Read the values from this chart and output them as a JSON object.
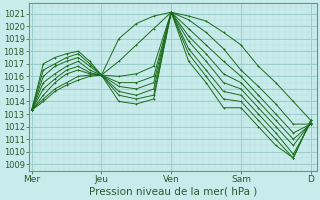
{
  "xlabel": "Pression niveau de la mer( hPa )",
  "bg_color": "#c8ecec",
  "grid_major_color": "#98c8c8",
  "grid_minor_color": "#b8dcdc",
  "line_color": "#1a6b1a",
  "ylim": [
    1008.5,
    1021.8
  ],
  "yticks": [
    1009,
    1010,
    1011,
    1012,
    1013,
    1014,
    1015,
    1016,
    1017,
    1018,
    1019,
    1020,
    1021
  ],
  "xlim": [
    -2,
    196
  ],
  "x_day_labels": [
    "Mer",
    "Jeu",
    "Ven",
    "Sam",
    "D"
  ],
  "x_day_positions": [
    0,
    48,
    96,
    144,
    192
  ],
  "lines": [
    {
      "pts": [
        [
          0,
          1013.3
        ],
        [
          8,
          1014.0
        ],
        [
          16,
          1014.8
        ],
        [
          24,
          1015.3
        ],
        [
          32,
          1015.7
        ],
        [
          40,
          1016.0
        ],
        [
          48,
          1016.1
        ],
        [
          60,
          1019.0
        ],
        [
          72,
          1020.2
        ],
        [
          84,
          1020.8
        ],
        [
          96,
          1021.1
        ],
        [
          108,
          1020.8
        ],
        [
          120,
          1020.4
        ],
        [
          132,
          1019.5
        ],
        [
          144,
          1018.5
        ],
        [
          156,
          1016.8
        ],
        [
          168,
          1015.5
        ],
        [
          180,
          1014.0
        ],
        [
          192,
          1012.5
        ]
      ]
    },
    {
      "pts": [
        [
          0,
          1013.3
        ],
        [
          8,
          1014.2
        ],
        [
          16,
          1015.0
        ],
        [
          24,
          1015.5
        ],
        [
          32,
          1016.0
        ],
        [
          40,
          1016.1
        ],
        [
          48,
          1016.1
        ],
        [
          60,
          1017.2
        ],
        [
          72,
          1018.5
        ],
        [
          84,
          1019.8
        ],
        [
          96,
          1021.1
        ],
        [
          108,
          1020.5
        ],
        [
          120,
          1019.5
        ],
        [
          132,
          1018.2
        ],
        [
          144,
          1016.5
        ],
        [
          156,
          1015.2
        ],
        [
          168,
          1013.8
        ],
        [
          180,
          1012.2
        ],
        [
          192,
          1012.2
        ]
      ]
    },
    {
      "pts": [
        [
          0,
          1013.3
        ],
        [
          8,
          1014.5
        ],
        [
          16,
          1015.5
        ],
        [
          24,
          1016.2
        ],
        [
          32,
          1016.5
        ],
        [
          40,
          1016.2
        ],
        [
          48,
          1016.1
        ],
        [
          60,
          1016.0
        ],
        [
          72,
          1016.2
        ],
        [
          84,
          1016.8
        ],
        [
          96,
          1021.1
        ],
        [
          108,
          1019.8
        ],
        [
          120,
          1018.5
        ],
        [
          132,
          1017.2
        ],
        [
          144,
          1016.0
        ],
        [
          156,
          1014.5
        ],
        [
          168,
          1013.0
        ],
        [
          180,
          1011.5
        ],
        [
          192,
          1012.2
        ]
      ]
    },
    {
      "pts": [
        [
          0,
          1013.3
        ],
        [
          8,
          1015.0
        ],
        [
          16,
          1015.8
        ],
        [
          24,
          1016.5
        ],
        [
          32,
          1016.8
        ],
        [
          40,
          1016.3
        ],
        [
          48,
          1016.1
        ],
        [
          60,
          1015.5
        ],
        [
          72,
          1015.5
        ],
        [
          84,
          1016.0
        ],
        [
          96,
          1021.1
        ],
        [
          108,
          1019.2
        ],
        [
          120,
          1017.8
        ],
        [
          132,
          1016.2
        ],
        [
          144,
          1015.5
        ],
        [
          156,
          1014.0
        ],
        [
          168,
          1012.5
        ],
        [
          180,
          1011.0
        ],
        [
          192,
          1012.2
        ]
      ]
    },
    {
      "pts": [
        [
          0,
          1013.3
        ],
        [
          8,
          1015.5
        ],
        [
          16,
          1016.2
        ],
        [
          24,
          1016.8
        ],
        [
          32,
          1017.2
        ],
        [
          40,
          1016.5
        ],
        [
          48,
          1016.1
        ],
        [
          60,
          1015.2
        ],
        [
          72,
          1015.0
        ],
        [
          84,
          1015.5
        ],
        [
          96,
          1021.1
        ],
        [
          108,
          1018.8
        ],
        [
          120,
          1017.2
        ],
        [
          132,
          1015.5
        ],
        [
          144,
          1015.0
        ],
        [
          156,
          1013.5
        ],
        [
          168,
          1012.0
        ],
        [
          180,
          1010.5
        ],
        [
          192,
          1012.3
        ]
      ]
    },
    {
      "pts": [
        [
          0,
          1013.3
        ],
        [
          8,
          1016.0
        ],
        [
          16,
          1016.8
        ],
        [
          24,
          1017.2
        ],
        [
          32,
          1017.5
        ],
        [
          40,
          1016.8
        ],
        [
          48,
          1016.1
        ],
        [
          60,
          1014.8
        ],
        [
          72,
          1014.5
        ],
        [
          84,
          1015.0
        ],
        [
          96,
          1021.1
        ],
        [
          108,
          1018.2
        ],
        [
          120,
          1016.5
        ],
        [
          132,
          1014.8
        ],
        [
          144,
          1014.5
        ],
        [
          156,
          1013.0
        ],
        [
          168,
          1011.5
        ],
        [
          180,
          1009.8
        ],
        [
          192,
          1012.3
        ]
      ]
    },
    {
      "pts": [
        [
          0,
          1013.3
        ],
        [
          8,
          1016.5
        ],
        [
          16,
          1017.0
        ],
        [
          24,
          1017.5
        ],
        [
          32,
          1017.8
        ],
        [
          40,
          1017.0
        ],
        [
          48,
          1016.1
        ],
        [
          60,
          1014.5
        ],
        [
          72,
          1014.2
        ],
        [
          84,
          1014.5
        ],
        [
          96,
          1021.1
        ],
        [
          108,
          1017.8
        ],
        [
          120,
          1016.0
        ],
        [
          132,
          1014.2
        ],
        [
          144,
          1014.0
        ],
        [
          156,
          1012.5
        ],
        [
          168,
          1011.0
        ],
        [
          180,
          1009.5
        ],
        [
          192,
          1012.5
        ]
      ]
    },
    {
      "pts": [
        [
          0,
          1013.3
        ],
        [
          8,
          1017.0
        ],
        [
          16,
          1017.5
        ],
        [
          24,
          1017.8
        ],
        [
          32,
          1018.0
        ],
        [
          40,
          1017.2
        ],
        [
          48,
          1016.1
        ],
        [
          60,
          1014.0
        ],
        [
          72,
          1013.8
        ],
        [
          84,
          1014.2
        ],
        [
          96,
          1021.1
        ],
        [
          108,
          1017.2
        ],
        [
          120,
          1015.5
        ],
        [
          132,
          1013.5
        ],
        [
          144,
          1013.5
        ],
        [
          156,
          1012.0
        ],
        [
          168,
          1010.5
        ],
        [
          180,
          1009.5
        ],
        [
          192,
          1012.5
        ]
      ]
    }
  ]
}
